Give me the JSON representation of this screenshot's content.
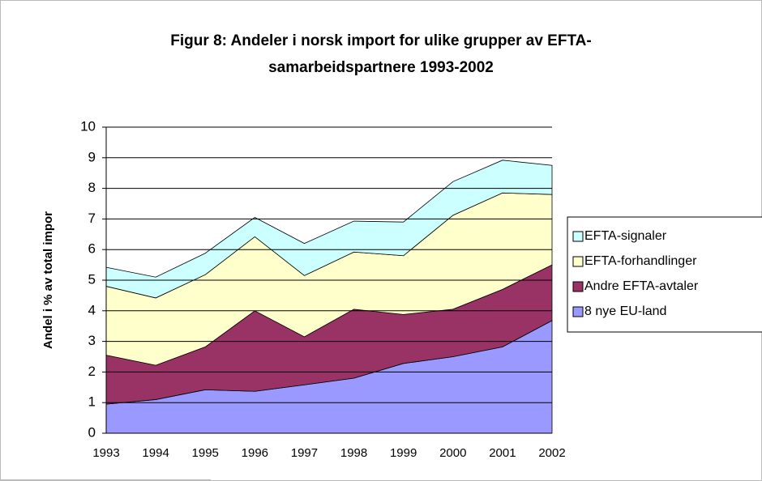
{
  "chart_data": {
    "type": "stacked_area",
    "title": [
      "Figur 8: Andeler i norsk import for ulike grupper av EFTA-",
      "samarbeidspartnere 1993-2002"
    ],
    "y_label": "Andel i % av total impor",
    "categories": [
      "1993",
      "1994",
      "1995",
      "1996",
      "1997",
      "1998",
      "1999",
      "2000",
      "2001",
      "2002"
    ],
    "series": [
      {
        "name": "8 nye EU-land",
        "color": "#9999ff",
        "values": [
          0.95,
          1.1,
          1.42,
          1.37,
          1.58,
          1.8,
          2.28,
          2.5,
          2.82,
          3.68
        ]
      },
      {
        "name": "Andre EFTA-avtaler",
        "color": "#993366",
        "values": [
          1.6,
          1.12,
          1.4,
          2.63,
          1.57,
          2.25,
          1.6,
          1.55,
          1.88,
          1.82
        ]
      },
      {
        "name": "EFTA-forhandlinger",
        "color": "#ffffcc",
        "values": [
          2.25,
          2.2,
          2.36,
          2.42,
          2.0,
          1.87,
          1.92,
          3.07,
          3.15,
          2.3
        ]
      },
      {
        "name": "EFTA-signaler",
        "color": "#ccffff",
        "values": [
          0.62,
          0.68,
          0.7,
          0.63,
          1.05,
          1.01,
          1.1,
          1.1,
          1.07,
          0.95
        ]
      }
    ],
    "ylim": [
      0,
      10
    ],
    "yticks": [
      0,
      1,
      2,
      3,
      4,
      5,
      6,
      7,
      8,
      9,
      10
    ],
    "grid": true
  }
}
